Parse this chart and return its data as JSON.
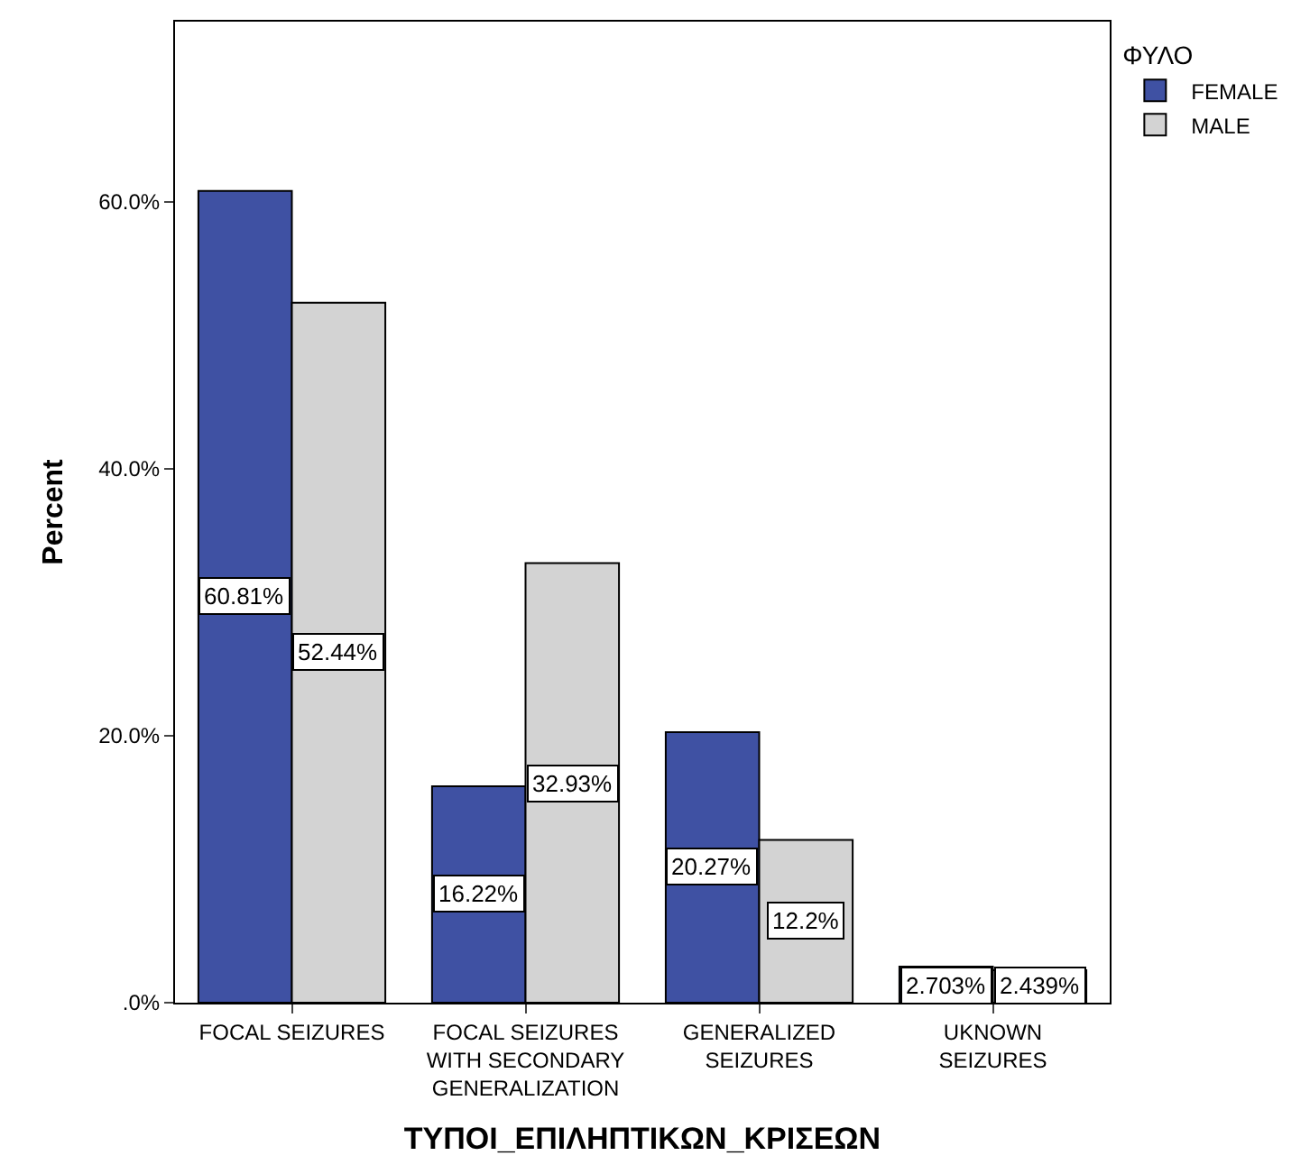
{
  "chart_data": {
    "type": "bar",
    "xlabel": "ΤΥΠΟΙ_ΕΠΙΛΗΠΤΙΚΩΝ_ΚΡΙΣΕΩΝ",
    "ylabel": "Percent",
    "legend_title": "ΦΥΛΟ",
    "legend": "top right",
    "categories": [
      "FOCAL SEIZURES",
      "FOCAL SEIZURES WITH SECONDARY GENERALIZATION",
      "GENERALIZED SEIZURES",
      "UKNOWN SEIZURES"
    ],
    "series": [
      {
        "name": "FEMALE",
        "color": "#3f51a3",
        "values": [
          60.81,
          16.22,
          20.27,
          2.703
        ],
        "value_labels": [
          "60.81%",
          "16.22%",
          "20.27%",
          "2.703%"
        ]
      },
      {
        "name": "MALE",
        "color": "#d3d3d3",
        "values": [
          52.44,
          32.93,
          12.2,
          2.439
        ],
        "value_labels": [
          "52.44%",
          "32.93%",
          "12.2%",
          "2.439%"
        ]
      }
    ],
    "ylim": [
      0,
      73.5
    ],
    "yticks": [
      {
        "value": 0,
        "label": ".0%"
      },
      {
        "value": 20,
        "label": "20.0%"
      },
      {
        "value": 40,
        "label": "40.0%"
      },
      {
        "value": 60,
        "label": "60.0%"
      }
    ]
  }
}
